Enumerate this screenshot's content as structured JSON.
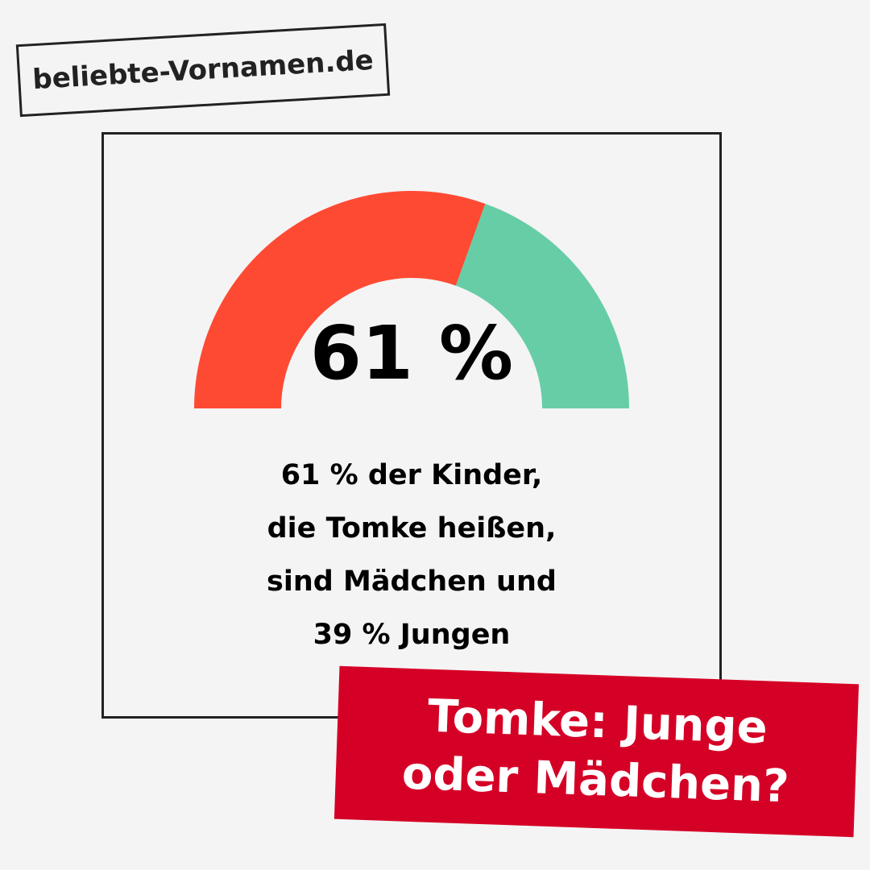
{
  "site_label": "beliebte-Vornamen.de",
  "chart_data": {
    "type": "pie",
    "variant": "half-donut gauge",
    "categories": [
      "Mädchen",
      "Jungen"
    ],
    "values": [
      61,
      39
    ],
    "colors": [
      "#FF4A33",
      "#67CDA6"
    ],
    "center_label": "61 %"
  },
  "description": [
    "61 % der Kinder,",
    "die Tomke heißen,",
    "sind Mädchen und",
    "39 % Jungen"
  ],
  "banner": {
    "line1": "Tomke: Junge",
    "line2": "oder Mädchen?",
    "color": "#D50026"
  }
}
